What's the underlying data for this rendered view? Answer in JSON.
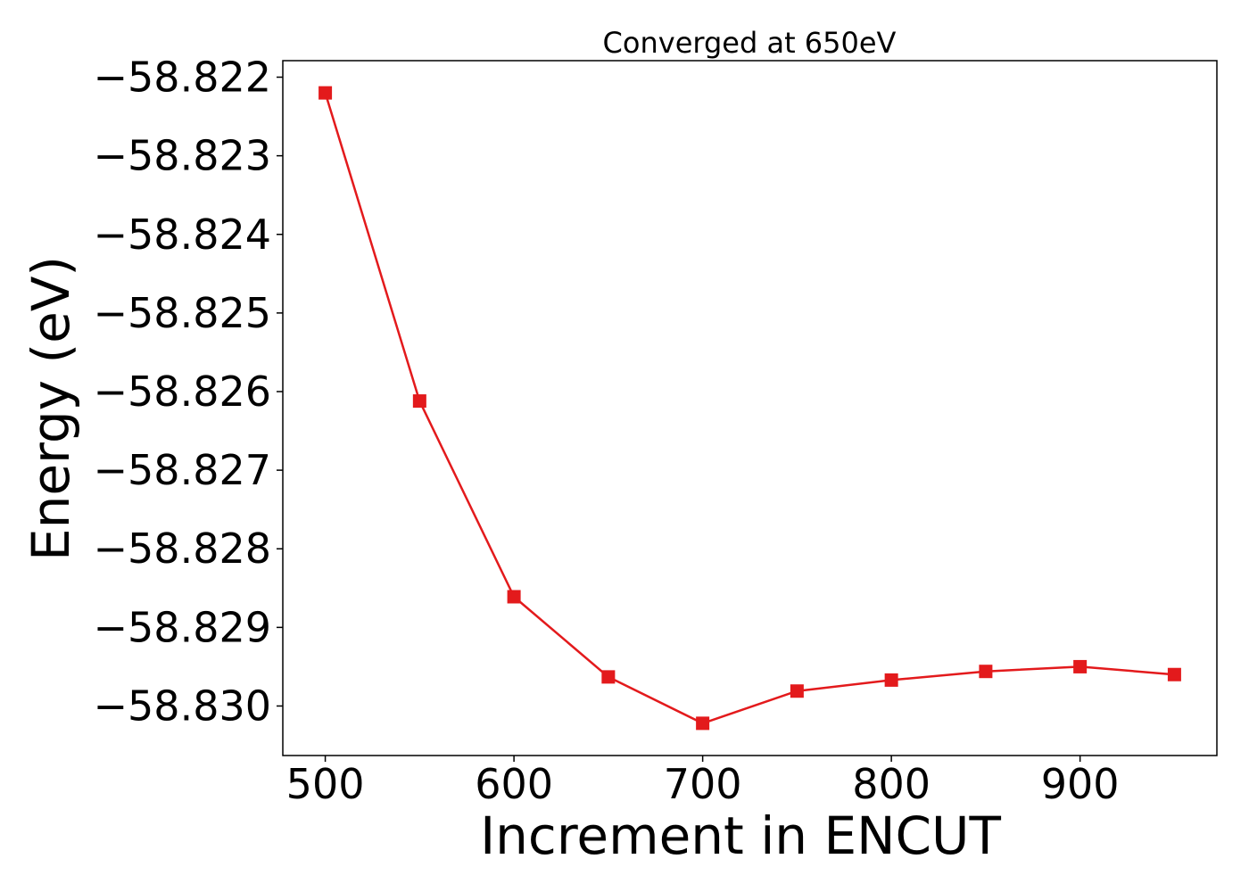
{
  "chart_data": {
    "type": "line",
    "title": "Converged at 650eV",
    "xlabel": "Increment in ENCUT",
    "ylabel": "Energy (eV)",
    "x": [
      500,
      550,
      600,
      650,
      700,
      750,
      800,
      850,
      900,
      950
    ],
    "series": [
      {
        "values": [
          -58.8222,
          -58.82612,
          -58.82861,
          -58.82963,
          -58.83022,
          -58.82981,
          -58.82967,
          -58.82956,
          -58.8295,
          -58.8296
        ],
        "color": "#e31a1c",
        "marker": "square"
      }
    ],
    "xticks": [
      500,
      600,
      700,
      800,
      900
    ],
    "xtick_labels": [
      "500",
      "600",
      "700",
      "800",
      "900"
    ],
    "yticks": [
      -58.822,
      -58.823,
      -58.824,
      -58.825,
      -58.826,
      -58.827,
      -58.828,
      -58.829,
      -58.83
    ],
    "ytick_labels": [
      "−58.822",
      "−58.823",
      "−58.824",
      "−58.825",
      "−58.826",
      "−58.827",
      "−58.828",
      "−58.829",
      "−58.830"
    ],
    "xlim": [
      477.5,
      972.5
    ],
    "ylim": [
      -58.83063,
      -58.82179
    ],
    "grid": false,
    "legend": "none"
  }
}
